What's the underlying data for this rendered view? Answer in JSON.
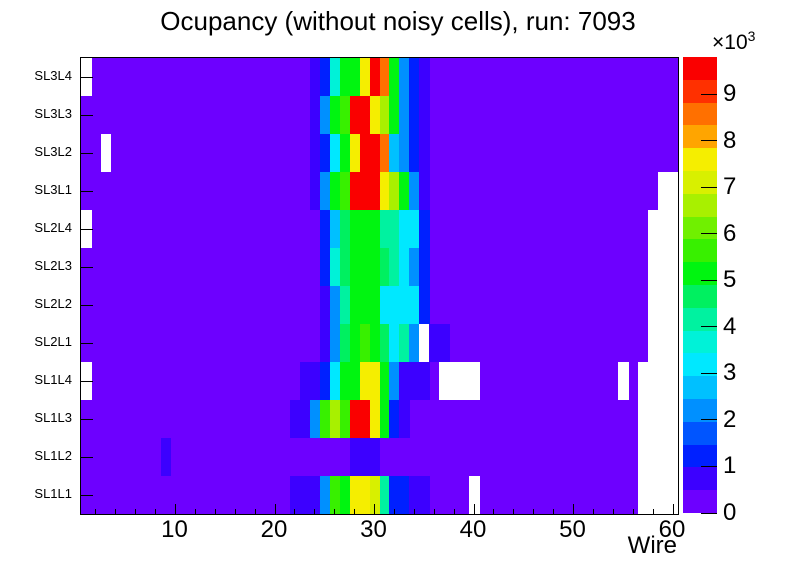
{
  "title": "Ocupancy (without noisy cells), run: 7093",
  "x_axis": {
    "label": "Wire",
    "ticks": [
      10,
      20,
      30,
      40,
      50,
      60
    ],
    "minor_step": 2,
    "min": 0.5,
    "max": 60.5
  },
  "y_axis": {
    "rows_top_to_bottom": [
      "SL3L4",
      "SL3L3",
      "SL3L2",
      "SL3L1",
      "SL2L4",
      "SL2L3",
      "SL2L2",
      "SL2L1",
      "SL1L4",
      "SL1L3",
      "SL1L2",
      "SL1L1"
    ]
  },
  "z_axis": {
    "ticks": [
      0,
      1,
      2,
      3,
      4,
      5,
      6,
      7,
      8,
      9
    ],
    "multiplier_base": "×10",
    "multiplier_exp": "3",
    "max": 9.8
  },
  "palette": [
    "#6D00FF",
    "#3C00FF",
    "#0020FF",
    "#0055FF",
    "#0090FF",
    "#00C0FF",
    "#00E8FF",
    "#00F2D8",
    "#00F2A0",
    "#00F060",
    "#00F510",
    "#38F000",
    "#70F000",
    "#A8F000",
    "#D8F000",
    "#F5EE00",
    "#FFA500",
    "#FF7000",
    "#FF3000",
    "#FA0000"
  ],
  "background_value": 0.2,
  "chart_data": {
    "type": "heatmap",
    "title": "Ocupancy (without noisy cells), run: 7093",
    "xlabel": "Wire",
    "value_units": "counts, in thousands (×10³)",
    "n_wires": 60,
    "z_range": [
      0,
      9.8
    ],
    "rows": [
      {
        "label": "SL3L4",
        "white_wires": [
          1
        ],
        "cells": {
          "24": 0.7,
          "25": 1.4,
          "26": 3.7,
          "27": 4.9,
          "28": 5.2,
          "29": 7.7,
          "30": 9.7,
          "31": 8.4,
          "32": 5.2,
          "33": 2.4,
          "34": 1.4,
          "35": 0.7
        }
      },
      {
        "label": "SL3L3",
        "white_wires": [],
        "cells": {
          "24": 0.7,
          "25": 2.4,
          "26": 4.9,
          "27": 5.4,
          "28": 9.7,
          "29": 9.7,
          "30": 7.7,
          "31": 6.4,
          "32": 4.9,
          "33": 2.4,
          "34": 1.4,
          "35": 0.7
        }
      },
      {
        "label": "SL3L2",
        "white_wires": [
          3
        ],
        "cells": {
          "24": 0.7,
          "25": 1.4,
          "26": 3.2,
          "27": 4.9,
          "28": 7.4,
          "29": 9.7,
          "30": 9.7,
          "31": 8.4,
          "32": 2.9,
          "33": 2.4,
          "34": 1.4,
          "35": 0.7
        }
      },
      {
        "label": "SL3L1",
        "white_wires": [
          59,
          60
        ],
        "cells": {
          "24": 0.7,
          "25": 2.4,
          "26": 4.9,
          "27": 5.4,
          "28": 9.4,
          "29": 9.7,
          "30": 9.7,
          "31": 7.7,
          "32": 6.4,
          "33": 4.9,
          "34": 2.4,
          "35": 0.7
        }
      },
      {
        "label": "SL2L4",
        "white_wires": [
          1,
          58,
          59,
          60
        ],
        "cells": {
          "25": 1.4,
          "26": 2.7,
          "27": 4.7,
          "28": 4.9,
          "29": 5.2,
          "30": 4.9,
          "31": 4.4,
          "32": 4.2,
          "33": 3.2,
          "34": 3.2,
          "35": 1.4
        }
      },
      {
        "label": "SL2L3",
        "white_wires": [
          58,
          59,
          60
        ],
        "cells": {
          "25": 1.4,
          "26": 3.7,
          "27": 4.7,
          "28": 5.2,
          "29": 5.2,
          "30": 4.9,
          "31": 4.7,
          "32": 4.2,
          "33": 3.2,
          "34": 2.4,
          "35": 1.4
        }
      },
      {
        "label": "SL2L2",
        "white_wires": [
          58,
          59,
          60
        ],
        "cells": {
          "25": 0.7,
          "26": 2.4,
          "27": 4.4,
          "28": 5.2,
          "29": 5.2,
          "30": 4.9,
          "31": 3.2,
          "32": 3.2,
          "33": 3.2,
          "34": 3.2,
          "35": 1.4
        }
      },
      {
        "label": "SL2L1",
        "white_wires": [
          35,
          58,
          59,
          60
        ],
        "cells": {
          "25": 0.7,
          "26": 2.4,
          "27": 4.7,
          "28": 5.2,
          "29": 5.4,
          "30": 5.2,
          "31": 4.7,
          "32": 3.2,
          "33": 4.2,
          "34": 2.4,
          "36": 0.7,
          "37": 0.7
        }
      },
      {
        "label": "SL1L4",
        "white_wires": [
          1,
          37,
          38,
          39,
          40,
          55,
          57,
          58,
          59,
          60
        ],
        "cells": {
          "23": 0.7,
          "24": 0.7,
          "25": 1.4,
          "26": 3.2,
          "27": 4.9,
          "28": 5.2,
          "29": 7.7,
          "30": 7.7,
          "31": 4.9,
          "32": 2.4,
          "33": 0.7,
          "34": 0.7,
          "35": 0.7
        }
      },
      {
        "label": "SL1L3",
        "white_wires": [
          57,
          58,
          59,
          60
        ],
        "cells": {
          "22": 0.7,
          "23": 0.7,
          "24": 2.4,
          "25": 5.4,
          "26": 6.6,
          "27": 5.4,
          "28": 9.7,
          "29": 9.7,
          "30": 7.7,
          "31": 4.9,
          "32": 1.4,
          "33": 0.7
        }
      },
      {
        "label": "SL1L2",
        "white_wires": [
          57,
          58,
          59,
          60
        ],
        "cells": {
          "9": 0.7,
          "28": 0.7,
          "29": 0.7,
          "30": 0.7
        }
      },
      {
        "label": "SL1L1",
        "white_wires": [
          40,
          57,
          58,
          59,
          60
        ],
        "cells": {
          "22": 0.7,
          "23": 0.7,
          "24": 0.7,
          "25": 2.4,
          "26": 5.4,
          "27": 5.2,
          "28": 7.4,
          "29": 7.4,
          "30": 7.2,
          "31": 4.2,
          "32": 1.4,
          "33": 1.4,
          "34": 0.7,
          "35": 0.7
        }
      }
    ]
  }
}
